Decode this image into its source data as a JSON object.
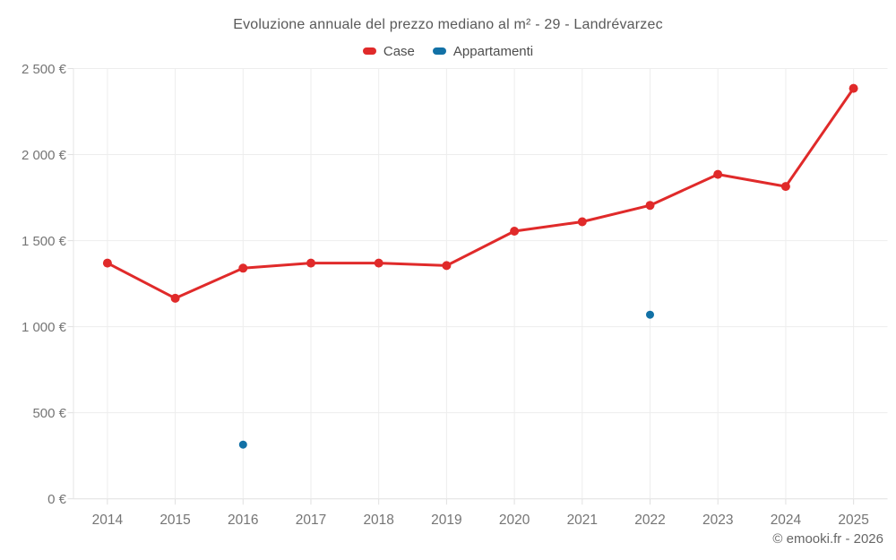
{
  "watermark": "© emooki.fr - 2026",
  "chart_data": {
    "type": "line",
    "title": "Evoluzione annuale del prezzo mediano al m² - 29 - Landrévarzec",
    "categories": [
      "2014",
      "2015",
      "2016",
      "2017",
      "2018",
      "2019",
      "2020",
      "2021",
      "2022",
      "2023",
      "2024",
      "2025"
    ],
    "series": [
      {
        "name": "Case",
        "type": "line",
        "color": "#e02a2a",
        "values": [
          1370,
          1165,
          1340,
          1370,
          1370,
          1355,
          1555,
          1610,
          1705,
          1885,
          1815,
          2385
        ]
      },
      {
        "name": "Appartamenti",
        "type": "scatter",
        "color": "#1271a6",
        "values": [
          null,
          null,
          315,
          null,
          null,
          null,
          null,
          null,
          1070,
          null,
          null,
          null
        ]
      }
    ],
    "xlabel": "",
    "ylabel": "",
    "ylim": [
      0,
      2500
    ],
    "ytick_step": 500,
    "ytick_labels": [
      "0 €",
      "500 €",
      "1 000 €",
      "1 500 €",
      "2 000 €",
      "2 500 €"
    ],
    "grid": true,
    "legend_position": "top"
  }
}
